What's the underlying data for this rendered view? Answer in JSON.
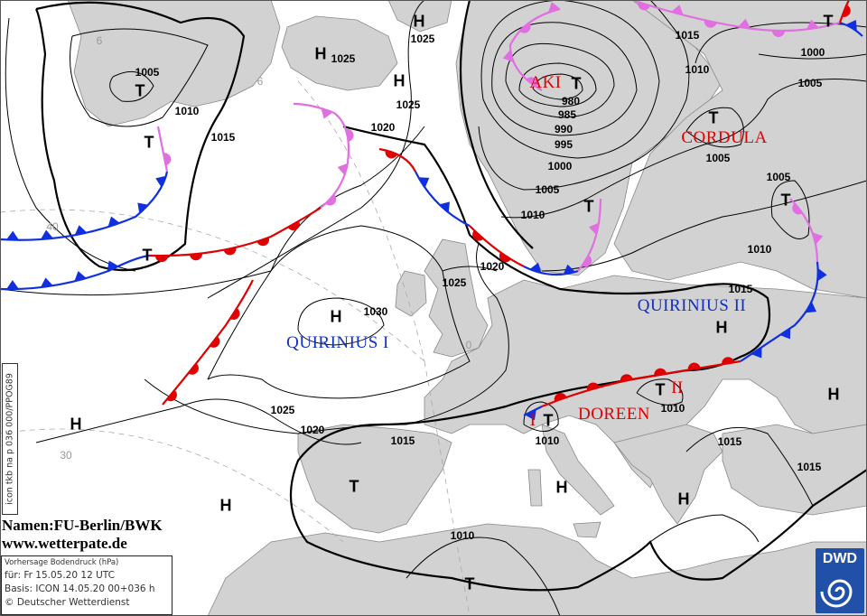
{
  "map": {
    "colors": {
      "land": "#d2d2d2",
      "sea": "#ffffff",
      "warm_front": "#e00000",
      "cold_front": "#1030e0",
      "occluded_front": "#e070e0",
      "high_low_names_warm": "#e00000",
      "high_low_names_cold": "#1030c0"
    },
    "pressure_centers": [
      "T",
      "H",
      "H",
      "H",
      "T",
      "T",
      "T",
      "T",
      "H",
      "T",
      "H",
      "T",
      "H",
      "H",
      "T",
      "T",
      "H",
      "H",
      "T",
      "T",
      "T",
      "H"
    ],
    "system_names": [
      "AKI",
      "CORDULA",
      "QUIRINIUS I",
      "QUIRINIUS II",
      "DOREEN",
      "I",
      "II"
    ],
    "isobar_labels": [
      "1005",
      "1010",
      "1015",
      "1025",
      "1025",
      "1025",
      "1020",
      "980",
      "985",
      "990",
      "995",
      "1000",
      "1005",
      "1010",
      "1015",
      "1010",
      "1000",
      "1005",
      "1005",
      "1005",
      "1010",
      "1020",
      "1025",
      "1030",
      "1015",
      "1025",
      "1020",
      "1015",
      "1010",
      "1010",
      "1015",
      "1015",
      "1010"
    ],
    "grid_labels": [
      "40",
      "30",
      "0",
      "6",
      "6"
    ]
  },
  "credits": {
    "line1": "Namen:FU-Berlin/BWK",
    "line2": "www.wetterpate.de"
  },
  "info": {
    "title": "Vorhersage Bodendruck (hPa)",
    "valid": "für:  Fr 15.05.20  12 UTC",
    "basis": "Basis: ICON  14.05.20 00+036 h",
    "copyright": "© Deutscher Wetterdienst"
  },
  "side_code": "icon tkb na p 036 000/PPOG89",
  "logo": "DWD"
}
